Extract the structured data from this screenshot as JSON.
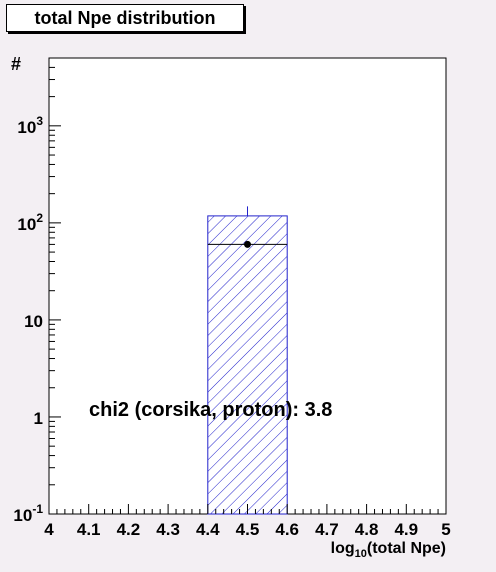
{
  "chart_data": {
    "type": "histogram",
    "title": "total Npe distribution",
    "xlabel_main": "log",
    "xlabel_sub": "10",
    "xlabel_rest": "(total Npe)",
    "ylabel": "#",
    "xlim": [
      4,
      5
    ],
    "ylim": [
      0.1,
      5000
    ],
    "yscale": "log",
    "x_ticks": [
      "4",
      "4.1",
      "4.2",
      "4.3",
      "4.4",
      "4.5",
      "4.6",
      "4.7",
      "4.8",
      "4.9",
      "5"
    ],
    "y_ticks": [
      {
        "value": 0.1,
        "base": "10",
        "exp": "-1"
      },
      {
        "value": 1,
        "base": "1",
        "exp": ""
      },
      {
        "value": 10,
        "base": "10",
        "exp": ""
      },
      {
        "value": 100,
        "base": "10",
        "exp": "2"
      },
      {
        "value": 1000,
        "base": "10",
        "exp": "3"
      }
    ],
    "series": [
      {
        "kind": "hatched-histogram",
        "bin_low": 4.4,
        "bin_high": 4.6,
        "value": 118,
        "inner_line": 60,
        "error_high": 148
      },
      {
        "kind": "data-point",
        "x": 4.5,
        "y": 60
      }
    ],
    "annotation": "chi2 (corsika, proton): 3.8",
    "colors": {
      "histogram": "#2222cc",
      "background": "#f3eff3",
      "point": "#000000"
    }
  }
}
